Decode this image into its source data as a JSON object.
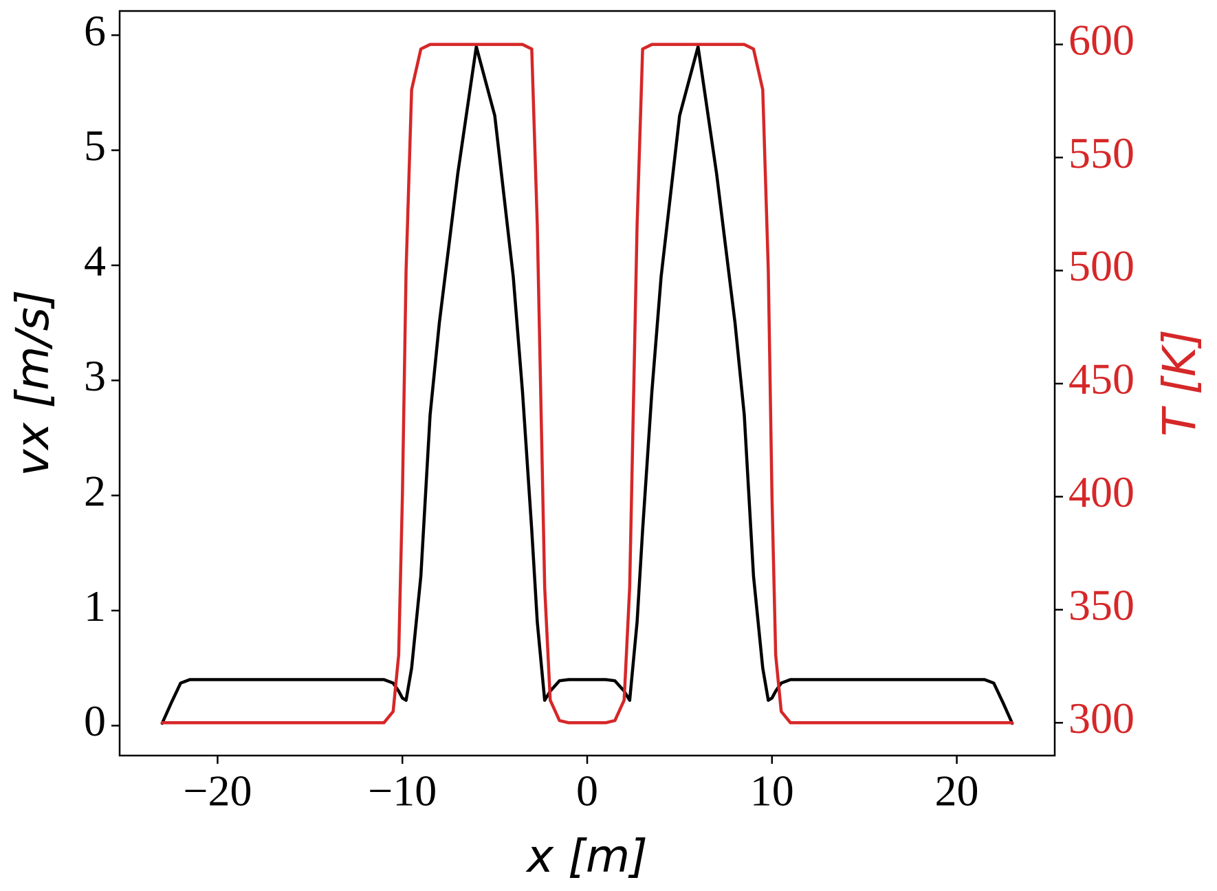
{
  "chart_data": {
    "type": "line",
    "xlabel": "x [m]",
    "ylabel": "vx [m/s]",
    "y2label": "T [K]",
    "x": [
      -23,
      -22.5,
      -22,
      -21.5,
      -11,
      -10.5,
      -10.2,
      -10,
      -9.8,
      -9.5,
      -9,
      -8.5,
      -8,
      -7,
      -6,
      -5,
      -4,
      -3.5,
      -3,
      -2.7,
      -2.3,
      -2,
      -1.5,
      -1,
      0,
      1,
      1.5,
      2,
      2.3,
      2.7,
      3,
      3.5,
      4,
      5,
      6,
      7,
      8,
      8.5,
      9,
      9.5,
      9.8,
      10,
      10.2,
      10.5,
      11,
      21.5,
      22,
      22.5,
      23
    ],
    "series": [
      {
        "name": "vx",
        "color": "#000000",
        "axis": "y",
        "values": [
          0.02,
          0.2,
          0.37,
          0.4,
          0.4,
          0.37,
          0.3,
          0.24,
          0.22,
          0.5,
          1.3,
          2.7,
          3.5,
          4.8,
          5.9,
          5.3,
          3.9,
          2.9,
          1.7,
          0.9,
          0.22,
          0.3,
          0.39,
          0.4,
          0.4,
          0.4,
          0.39,
          0.3,
          0.22,
          0.9,
          1.7,
          2.9,
          3.9,
          5.3,
          5.9,
          4.8,
          3.5,
          2.7,
          1.3,
          0.5,
          0.22,
          0.24,
          0.3,
          0.37,
          0.4,
          0.4,
          0.37,
          0.2,
          0.02
        ]
      },
      {
        "name": "T",
        "color": "#d62728",
        "axis": "y2",
        "values": [
          300,
          300,
          300,
          300,
          300,
          305,
          330,
          400,
          500,
          580,
          598,
          600,
          600,
          600,
          600,
          600,
          600,
          600,
          598,
          520,
          360,
          310,
          301,
          300,
          300,
          300,
          301,
          310,
          360,
          520,
          598,
          600,
          600,
          600,
          600,
          600,
          600,
          600,
          598,
          580,
          500,
          400,
          330,
          305,
          300,
          300,
          300,
          300,
          300
        ]
      }
    ],
    "xlim": [
      -25.3,
      25.3
    ],
    "ylim": [
      -0.26,
      6.21
    ],
    "y2lim": [
      285.5,
      614.8
    ],
    "xticks": [
      {
        "value": -20,
        "label": "−20"
      },
      {
        "value": -10,
        "label": "−10"
      },
      0,
      10,
      20
    ],
    "yticks": [
      0,
      1,
      2,
      3,
      4,
      5,
      6
    ],
    "y2ticks": [
      300,
      350,
      400,
      450,
      500,
      550,
      600
    ],
    "y2_tick_color": "#d62728",
    "grid": false
  }
}
